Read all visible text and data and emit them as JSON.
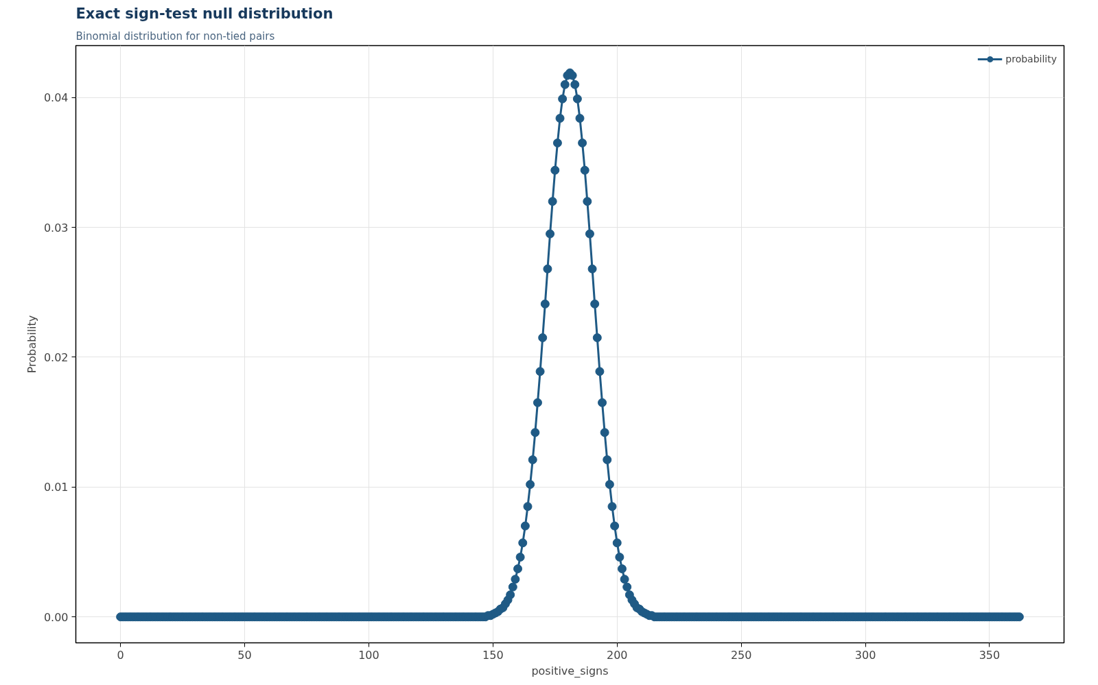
{
  "chart_data": {
    "type": "line",
    "title": "Exact sign-test null distribution",
    "subtitle": "Binomial distribution for non-tied pairs",
    "xlabel": "positive_signs",
    "ylabel": "Probability",
    "xlim": [
      -18,
      380
    ],
    "xticks": [
      0,
      50,
      100,
      150,
      200,
      250,
      300,
      350
    ],
    "ylim": [
      -0.002,
      0.044
    ],
    "yticks": [
      {
        "value": 0,
        "label": "0.00"
      },
      {
        "value": 0.01,
        "label": "0.01"
      },
      {
        "value": 0.02,
        "label": "0.02"
      },
      {
        "value": 0.03,
        "label": "0.03"
      },
      {
        "value": 0.04,
        "label": "0.04"
      }
    ],
    "grid": true,
    "legend": "top right",
    "marker": "circle",
    "line_style": "solid",
    "x": [
      0,
      1,
      2,
      3,
      4,
      5,
      6,
      7,
      8,
      9,
      10,
      11,
      12,
      13,
      14,
      15,
      16,
      17,
      18,
      19,
      20,
      21,
      22,
      23,
      24,
      25,
      26,
      27,
      28,
      29,
      30,
      31,
      32,
      33,
      34,
      35,
      36,
      37,
      38,
      39,
      40,
      41,
      42,
      43,
      44,
      45,
      46,
      47,
      48,
      49,
      50,
      51,
      52,
      53,
      54,
      55,
      56,
      57,
      58,
      59,
      60,
      61,
      62,
      63,
      64,
      65,
      66,
      67,
      68,
      69,
      70,
      71,
      72,
      73,
      74,
      75,
      76,
      77,
      78,
      79,
      80,
      81,
      82,
      83,
      84,
      85,
      86,
      87,
      88,
      89,
      90,
      91,
      92,
      93,
      94,
      95,
      96,
      97,
      98,
      99,
      100,
      101,
      102,
      103,
      104,
      105,
      106,
      107,
      108,
      109,
      110,
      111,
      112,
      113,
      114,
      115,
      116,
      117,
      118,
      119,
      120,
      121,
      122,
      123,
      124,
      125,
      126,
      127,
      128,
      129,
      130,
      131,
      132,
      133,
      134,
      135,
      136,
      137,
      138,
      139,
      140,
      141,
      142,
      143,
      144,
      145,
      146,
      147,
      148,
      149,
      150,
      151,
      152,
      153,
      154,
      155,
      156,
      157,
      158,
      159,
      160,
      161,
      162,
      163,
      164,
      165,
      166,
      167,
      168,
      169,
      170,
      171,
      172,
      173,
      174,
      175,
      176,
      177,
      178,
      179,
      180,
      181,
      182,
      183,
      184,
      185,
      186,
      187,
      188,
      189,
      190,
      191,
      192,
      193,
      194,
      195,
      196,
      197,
      198,
      199,
      200,
      201,
      202,
      203,
      204,
      205,
      206,
      207,
      208,
      209,
      210,
      211,
      212,
      213,
      214,
      215,
      216,
      217,
      218,
      219,
      220,
      221,
      222,
      223,
      224,
      225,
      226,
      227,
      228,
      229,
      230,
      231,
      232,
      233,
      234,
      235,
      236,
      237,
      238,
      239,
      240,
      241,
      242,
      243,
      244,
      245,
      246,
      247,
      248,
      249,
      250,
      251,
      252,
      253,
      254,
      255,
      256,
      257,
      258,
      259,
      260,
      261,
      262,
      263,
      264,
      265,
      266,
      267,
      268,
      269,
      270,
      271,
      272,
      273,
      274,
      275,
      276,
      277,
      278,
      279,
      280,
      281,
      282,
      283,
      284,
      285,
      286,
      287,
      288,
      289,
      290,
      291,
      292,
      293,
      294,
      295,
      296,
      297,
      298,
      299,
      300,
      301,
      302,
      303,
      304,
      305,
      306,
      307,
      308,
      309,
      310,
      311,
      312,
      313,
      314,
      315,
      316,
      317,
      318,
      319,
      320,
      321,
      322,
      323,
      324,
      325,
      326,
      327,
      328,
      329,
      330,
      331,
      332,
      333,
      334,
      335,
      336,
      337,
      338,
      339,
      340,
      341,
      342,
      343,
      344,
      345,
      346,
      347,
      348,
      349,
      350,
      351,
      352,
      353,
      354,
      355,
      356,
      357,
      358,
      359,
      360,
      361,
      362
    ],
    "series": [
      {
        "name": "probability",
        "color": "#1f5a85",
        "values": [
          0,
          0,
          0,
          0,
          0,
          0,
          0,
          0,
          0,
          0,
          0,
          0,
          0,
          0,
          0,
          0,
          0,
          0,
          0,
          0,
          0,
          0,
          0,
          0,
          0,
          0,
          0,
          0,
          0,
          0,
          0,
          0,
          0,
          0,
          0,
          0,
          0,
          0,
          0,
          0,
          0,
          0,
          0,
          0,
          0,
          0,
          0,
          0,
          0,
          0,
          0,
          0,
          0,
          0,
          0,
          0,
          0,
          0,
          0,
          0,
          0,
          0,
          0,
          0,
          0,
          0,
          0,
          0,
          0,
          0,
          0,
          0,
          0,
          0,
          0,
          0,
          0,
          0,
          0,
          0,
          0,
          0,
          0,
          0,
          0,
          0,
          0,
          0,
          0,
          0,
          0,
          0,
          0,
          0,
          0,
          0,
          0,
          0,
          0,
          0,
          0,
          0,
          0,
          0,
          0,
          0,
          0,
          0,
          0,
          0,
          0,
          0,
          0,
          0,
          0,
          0,
          0,
          0,
          0,
          0,
          0,
          0,
          0,
          0,
          0,
          0,
          0,
          0,
          0,
          0,
          0,
          0,
          0,
          0,
          0,
          0,
          0,
          0,
          0,
          0,
          0,
          0,
          0,
          0,
          0,
          0,
          0,
          0,
          0.0001,
          0.0001,
          0.0002,
          0.0003,
          0.0004,
          0.0006,
          0.0007,
          0.001,
          0.0013,
          0.0017,
          0.0023,
          0.0029,
          0.0037,
          0.0046,
          0.0057,
          0.007,
          0.0085,
          0.0102,
          0.0121,
          0.0142,
          0.0165,
          0.0189,
          0.0215,
          0.0241,
          0.0268,
          0.0295,
          0.032,
          0.0344,
          0.0365,
          0.0384,
          0.0399,
          0.041,
          0.0417,
          0.0419,
          0.0417,
          0.041,
          0.0399,
          0.0384,
          0.0365,
          0.0344,
          0.032,
          0.0295,
          0.0268,
          0.0241,
          0.0215,
          0.0189,
          0.0165,
          0.0142,
          0.0121,
          0.0102,
          0.0085,
          0.007,
          0.0057,
          0.0046,
          0.0037,
          0.0029,
          0.0023,
          0.0017,
          0.0013,
          0.001,
          0.0007,
          0.0006,
          0.0004,
          0.0003,
          0.0002,
          0.0001,
          0.0001,
          0,
          0,
          0,
          0,
          0,
          0,
          0,
          0,
          0,
          0,
          0,
          0,
          0,
          0,
          0,
          0,
          0,
          0,
          0,
          0,
          0,
          0,
          0,
          0,
          0,
          0,
          0,
          0,
          0,
          0,
          0,
          0,
          0,
          0,
          0,
          0,
          0,
          0,
          0,
          0,
          0,
          0,
          0,
          0,
          0,
          0,
          0,
          0,
          0,
          0,
          0,
          0,
          0,
          0,
          0,
          0,
          0,
          0,
          0,
          0,
          0,
          0,
          0,
          0,
          0,
          0,
          0,
          0,
          0,
          0,
          0,
          0,
          0,
          0,
          0,
          0,
          0,
          0,
          0,
          0,
          0,
          0,
          0,
          0,
          0,
          0,
          0,
          0,
          0,
          0,
          0,
          0,
          0,
          0,
          0,
          0,
          0,
          0,
          0,
          0,
          0,
          0,
          0,
          0,
          0,
          0,
          0,
          0,
          0,
          0,
          0,
          0,
          0,
          0,
          0,
          0,
          0,
          0,
          0,
          0,
          0,
          0,
          0,
          0,
          0,
          0,
          0,
          0,
          0,
          0,
          0,
          0,
          0,
          0,
          0,
          0,
          0,
          0,
          0,
          0,
          0,
          0,
          0,
          0,
          0,
          0,
          0,
          0
        ]
      }
    ]
  }
}
